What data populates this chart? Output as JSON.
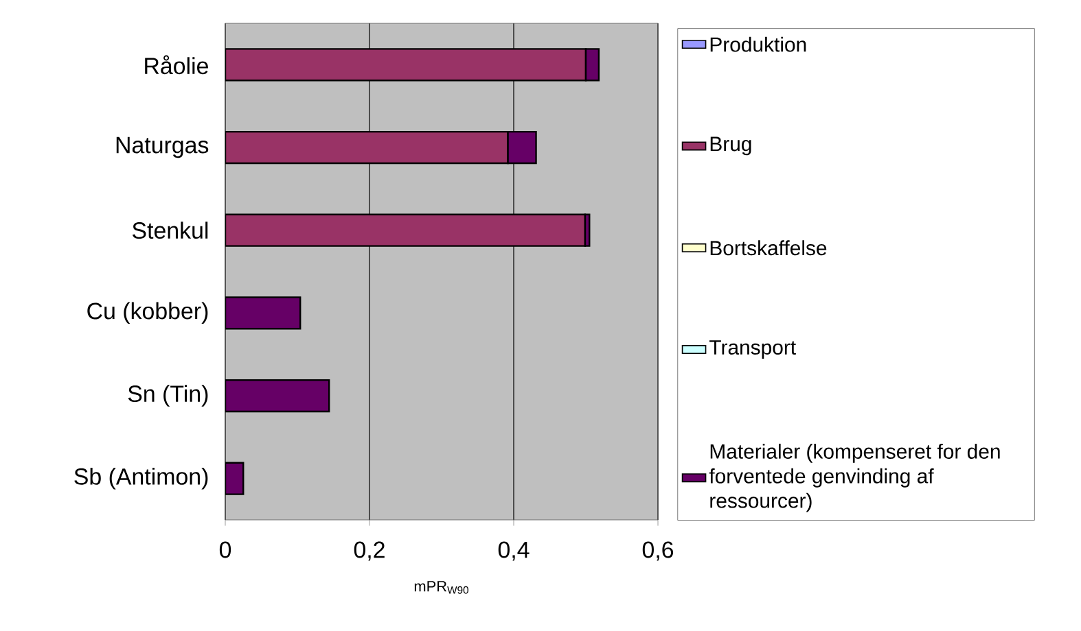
{
  "chart_data": {
    "type": "bar",
    "orientation": "horizontal",
    "stacked": true,
    "categories": [
      "Råolie",
      "Naturgas",
      "Stenkul",
      "Cu (kobber)",
      "Sn (Tin)",
      "Sb (Antimon)"
    ],
    "series": [
      {
        "name": "Produktion",
        "color": "#9999ff",
        "values": [
          0,
          0,
          0,
          0,
          0,
          0
        ]
      },
      {
        "name": "Brug",
        "color": "#993366",
        "values": [
          0.5,
          0.392,
          0.499,
          0,
          0,
          0
        ]
      },
      {
        "name": "Bortskaffelse",
        "color": "#ffffcc",
        "values": [
          0,
          0,
          0,
          0,
          0,
          0
        ]
      },
      {
        "name": "Transport",
        "color": "#ccffff",
        "values": [
          0,
          0,
          0,
          0,
          0,
          0
        ]
      },
      {
        "name": "Materialer (kompenseret for den forventede genvinding af ressourcer)",
        "color": "#660066",
        "values": [
          0.018,
          0.039,
          0.006,
          0.104,
          0.144,
          0.025
        ]
      }
    ],
    "xlabel": "mPR$_{W90}$",
    "xlim": [
      0,
      0.6
    ],
    "xticks": [
      0,
      {
        "value": 0.2,
        "label": "0,2"
      },
      {
        "value": 0.4,
        "label": "0,4"
      },
      {
        "value": 0.6,
        "label": "0,6"
      }
    ],
    "grid": "x",
    "legend": "right"
  }
}
